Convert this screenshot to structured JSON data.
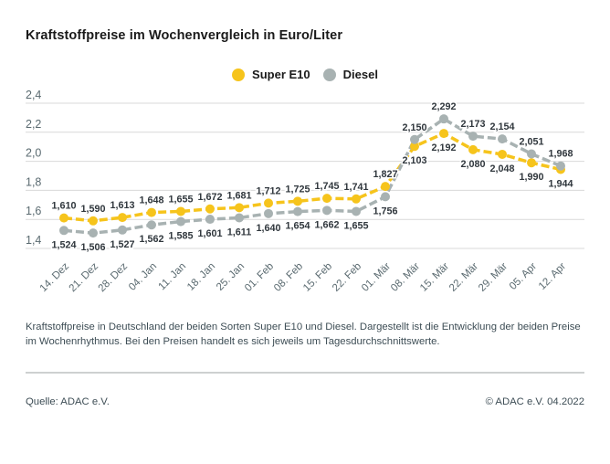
{
  "title": "Kraftstoffpreise im Wochenvergleich in Euro/Liter",
  "legend": {
    "super_e10_label": "Super E10",
    "diesel_label": "Diesel"
  },
  "colors": {
    "super_e10": "#f6c41c",
    "diesel": "#a8b2b2",
    "grid": "#d9d9d9",
    "axis_text": "#5a6a70",
    "data_label_text": "#30373d"
  },
  "chart_data": {
    "type": "line",
    "title": "Kraftstoffpreise im Wochenvergleich in Euro/Liter",
    "x": [
      "14. Dez",
      "21. Dez",
      "28. Dez",
      "04. Jan",
      "11. Jan",
      "18. Jan",
      "25. Jan",
      "01. Feb",
      "08. Feb",
      "15. Feb",
      "22. Feb",
      "01. Mär",
      "08. Mär",
      "15. Mär",
      "22. Mär",
      "29. Mär",
      "05. Apr",
      "12. Apr"
    ],
    "series": [
      {
        "name": "Super E10",
        "color": "#f6c41c",
        "values": [
          1.61,
          1.59,
          1.613,
          1.648,
          1.655,
          1.672,
          1.681,
          1.712,
          1.725,
          1.745,
          1.741,
          1.827,
          2.103,
          2.192,
          2.08,
          2.048,
          1.99,
          1.944
        ]
      },
      {
        "name": "Diesel",
        "color": "#a8b2b2",
        "values": [
          1.524,
          1.506,
          1.527,
          1.562,
          1.585,
          1.601,
          1.611,
          1.64,
          1.654,
          1.662,
          1.655,
          1.756,
          2.15,
          2.292,
          2.173,
          2.154,
          2.051,
          1.968
        ]
      }
    ],
    "ylim": [
      1.4,
      2.4
    ],
    "ytick_labels": [
      "2,4",
      "2,2",
      "2,0",
      "1,8",
      "1,6",
      "1,4"
    ],
    "grid": true,
    "legend_position": "top-center",
    "decimal_separator": ",",
    "value_label_decimals": 3
  },
  "description": "Kraftstoffpreise in Deutschland der beiden Sorten Super E10 und Diesel. Dargestellt ist die Entwicklung der beiden Preise im Wochenrhythmus. Bei den Preisen handelt es sich jeweils um Tagesdurchschnittswerte.",
  "footer": {
    "source": "Quelle: ADAC e.V.",
    "copyright": "© ADAC e.V. 04.2022"
  }
}
